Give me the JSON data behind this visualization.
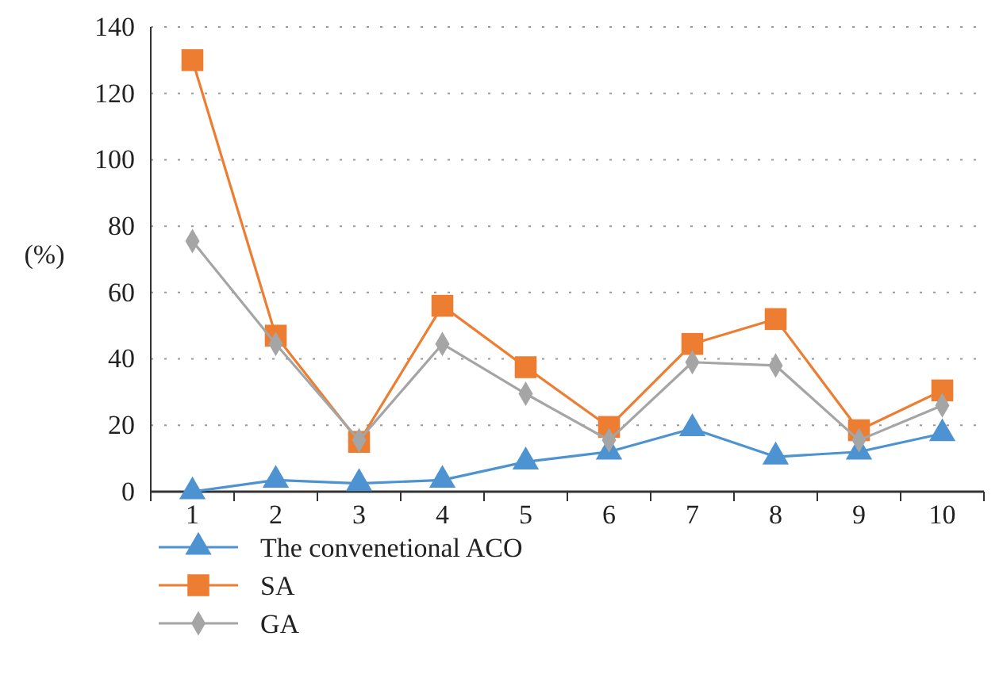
{
  "chart_data": {
    "type": "line",
    "ylabel": "(%)",
    "categories": [
      "1",
      "2",
      "3",
      "4",
      "5",
      "6",
      "7",
      "8",
      "9",
      "10"
    ],
    "series": [
      {
        "name": "The convenetional ACO",
        "color": "#4e93d1",
        "marker": "triangle",
        "values": [
          0,
          3.5,
          2.5,
          3.5,
          9,
          12,
          19,
          10.5,
          12,
          17.5
        ]
      },
      {
        "name": "SA",
        "color": "#ed7d31",
        "marker": "square",
        "values": [
          130,
          47,
          15,
          56,
          37.5,
          19.5,
          44.5,
          52,
          18.5,
          30.5
        ]
      },
      {
        "name": "GA",
        "color": "#a5a5a5",
        "marker": "diamond",
        "values": [
          75.5,
          44.5,
          15.5,
          44.5,
          29.5,
          15.5,
          39,
          38,
          15.5,
          26
        ]
      }
    ],
    "ylim": [
      0,
      140
    ],
    "yticks": [
      0,
      20,
      40,
      60,
      80,
      100,
      120,
      140
    ],
    "grid": "y",
    "legend": "bottom",
    "line_style": "solid"
  }
}
